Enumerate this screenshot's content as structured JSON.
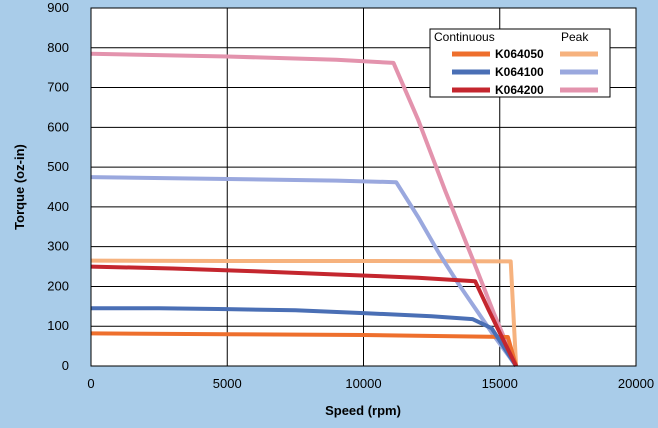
{
  "chart_data": {
    "type": "line",
    "xlabel": "Speed (rpm)",
    "ylabel": "Torque (oz-in)",
    "xlim": [
      0,
      20000
    ],
    "ylim": [
      0,
      900
    ],
    "x_ticks": [
      "0",
      "5000",
      "10000",
      "15000",
      "20000"
    ],
    "y_ticks": [
      "0",
      "100",
      "200",
      "300",
      "400",
      "500",
      "600",
      "700",
      "800",
      "900"
    ],
    "grid": true,
    "legend": {
      "placement": "top-right",
      "header_continuous": "Continuous",
      "header_peak": "Peak"
    },
    "series": [
      {
        "name": "K064050",
        "continuous": {
          "color": "#ee6f2d",
          "points": [
            [
              0,
              82
            ],
            [
              5000,
              80
            ],
            [
              10000,
              78
            ],
            [
              15300,
              73
            ],
            [
              15600,
              0
            ]
          ]
        },
        "peak": {
          "color": "#f6b27e",
          "points": [
            [
              0,
              265
            ],
            [
              5000,
              264
            ],
            [
              10000,
              264
            ],
            [
              15400,
              263
            ],
            [
              15600,
              0
            ]
          ]
        }
      },
      {
        "name": "K064100",
        "continuous": {
          "color": "#4a6fb5",
          "points": [
            [
              0,
              145
            ],
            [
              2500,
              145
            ],
            [
              5000,
              143
            ],
            [
              7500,
              140
            ],
            [
              10000,
              133
            ],
            [
              12500,
              125
            ],
            [
              14000,
              118
            ],
            [
              14700,
              95
            ],
            [
              15600,
              0
            ]
          ]
        },
        "peak": {
          "color": "#9aa8de",
          "points": [
            [
              0,
              475
            ],
            [
              5000,
              470
            ],
            [
              9000,
              466
            ],
            [
              11200,
              462
            ],
            [
              12000,
              375
            ],
            [
              12800,
              280
            ],
            [
              13500,
              205
            ],
            [
              14200,
              135
            ],
            [
              14800,
              75
            ],
            [
              15600,
              0
            ]
          ]
        }
      },
      {
        "name": "K064200",
        "continuous": {
          "color": "#c4262e",
          "points": [
            [
              0,
              250
            ],
            [
              3000,
              245
            ],
            [
              6000,
              238
            ],
            [
              9000,
              230
            ],
            [
              12000,
              222
            ],
            [
              14100,
              213
            ],
            [
              14600,
              140
            ],
            [
              15100,
              70
            ],
            [
              15600,
              0
            ]
          ]
        },
        "peak": {
          "color": "#e393ad",
          "points": [
            [
              0,
              785
            ],
            [
              5000,
              778
            ],
            [
              9000,
              770
            ],
            [
              11100,
              762
            ],
            [
              12000,
              620
            ],
            [
              13000,
              440
            ],
            [
              14000,
              270
            ],
            [
              14800,
              130
            ],
            [
              15600,
              0
            ]
          ]
        }
      }
    ]
  }
}
